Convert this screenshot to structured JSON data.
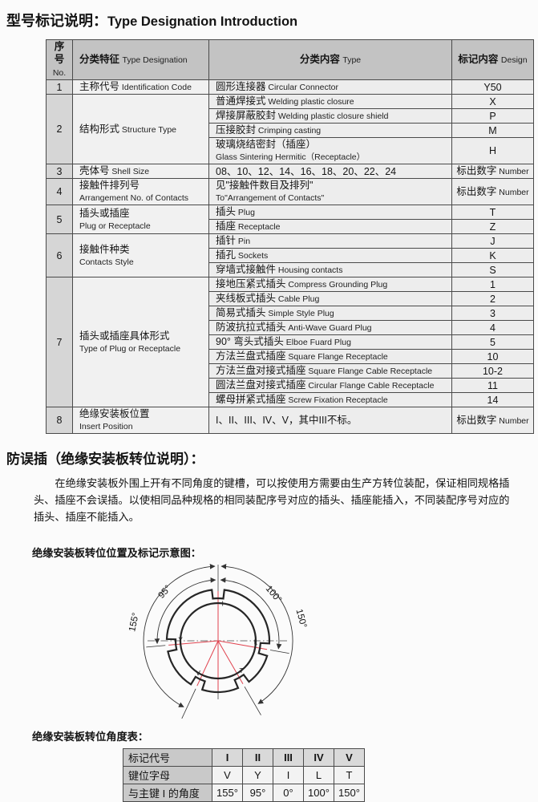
{
  "page": {
    "title_zh": "型号标记说明：",
    "title_en": "Type Designation Introduction"
  },
  "type_table": {
    "headers": [
      {
        "zh": "序号",
        "en": "No."
      },
      {
        "zh": "分类特征",
        "en": "Type Designation"
      },
      {
        "zh": "分类内容",
        "en": "Type"
      },
      {
        "zh": "标记内容",
        "en": "Design"
      }
    ],
    "rows": [
      {
        "no": "1",
        "feature_zh": "主称代号",
        "feature_en": "Identification Code",
        "items": [
          {
            "zh": "圆形连接器",
            "en": "Circular Connector",
            "code": "Y50"
          }
        ]
      },
      {
        "no": "2",
        "feature_zh": "结构形式",
        "feature_en": "Structure Type",
        "items": [
          {
            "zh": "普通焊接式",
            "en": "Welding plastic closure",
            "code": "X"
          },
          {
            "zh": "焊接屏蔽胶封",
            "en": "Welding plastic closure shield",
            "code": "P"
          },
          {
            "zh": "压接胶封",
            "en": "Crimping casting",
            "code": "M"
          },
          {
            "zh": "玻璃烧结密封（插座）",
            "en": "Glass Sintering Hermitic（Receptacle）",
            "code": "H",
            "two_line": true
          }
        ]
      },
      {
        "no": "3",
        "feature_zh": "壳体号",
        "feature_en": "Shell Size",
        "items": [
          {
            "zh": "08、10、12、14、16、18、20、22、24",
            "en": "",
            "code": "标出数字",
            "code_en": "Number"
          }
        ]
      },
      {
        "no": "4",
        "feature_zh": "接触件排列号",
        "feature_en": "Arrangement No. of Contacts",
        "feature_two_line": true,
        "items": [
          {
            "zh": "见\"接触件数目及排列\"",
            "en": "To\"Arrangement of Contacts\"",
            "code": "标出数字",
            "code_en": "Number",
            "two_line": true
          }
        ]
      },
      {
        "no": "5",
        "feature_zh": "插头或插座",
        "feature_en": "Plug or Receptacle",
        "feature_two_line": true,
        "items": [
          {
            "zh": "插头",
            "en": "Plug",
            "code": "T"
          },
          {
            "zh": "插座",
            "en": "Receptacle",
            "code": "Z"
          }
        ]
      },
      {
        "no": "6",
        "feature_zh": "接触件种类",
        "feature_en": "Contacts Style",
        "feature_two_line": true,
        "items": [
          {
            "zh": "插针",
            "en": "Pin",
            "code": "J"
          },
          {
            "zh": "插孔",
            "en": "Sockets",
            "code": "K"
          },
          {
            "zh": "穿墙式接触件",
            "en": "Housing contacts",
            "code": "S"
          }
        ]
      },
      {
        "no": "7",
        "feature_zh": "插头或插座具体形式",
        "feature_en": "Type of Plug or Receptacle",
        "feature_two_line": true,
        "items": [
          {
            "zh": "接地压紧式插头",
            "en": "Compress Grounding Plug",
            "code": "1"
          },
          {
            "zh": "夹线板式插头",
            "en": "Cable Plug",
            "code": "2"
          },
          {
            "zh": "简易式插头",
            "en": "Simple Style Plug",
            "code": "3"
          },
          {
            "zh": "防波抗拉式插头",
            "en": "Anti-Wave Guard Plug",
            "code": "4"
          },
          {
            "zh": "90° 弯头式插头",
            "en": "Elboe Fuard Plug",
            "code": "5"
          },
          {
            "zh": "方法兰盘式插座",
            "en": "Square Flange Receptacle",
            "code": "10"
          },
          {
            "zh": "方法兰盘对接式插座",
            "en": "Square Flange Cable Receptacle",
            "code": "10-2"
          },
          {
            "zh": "圆法兰盘对接式插座",
            "en": "Circular Flange Cable Receptacle",
            "code": "11"
          },
          {
            "zh": "螺母拼紧式插座",
            "en": "Screw Fixation Receptacle",
            "code": "14"
          }
        ]
      },
      {
        "no": "8",
        "feature_zh": "绝缘安装板位置",
        "feature_en": "Insert Position",
        "feature_two_line": true,
        "items": [
          {
            "zh": "I、II、III、IV、V，其中III不标。",
            "en": "",
            "code": "标出数字",
            "code_en": "Number",
            "two_line": true
          }
        ]
      }
    ]
  },
  "section2": {
    "title": "防误插（绝缘安装板转位说明）：",
    "paragraph": "在绝缘安装板外围上开有不同角度的键槽，可以按使用方需要由生产方转位装配，保证相同规格插头、插座不会误插。以使相同品种规格的相同装配序号对应的插头、插座能插入，不同装配序号对应的插头、插座不能插入。"
  },
  "diagram": {
    "caption": "绝缘安装板转位位置及标记示意图：",
    "red_color": "#e0424e",
    "keys": [
      {
        "letter": "I",
        "angle": 0
      },
      {
        "letter": "Y",
        "angle": -95
      },
      {
        "letter": "V",
        "angle": -155
      },
      {
        "letter": "L",
        "angle": 100
      },
      {
        "letter": "T",
        "angle": 150
      }
    ],
    "dims": [
      {
        "label": "95°",
        "to": -95,
        "r": 76
      },
      {
        "label": "155°",
        "to": -155,
        "r": 93
      },
      {
        "label": "100°",
        "to": 100,
        "r": 76
      },
      {
        "label": "150°",
        "to": 150,
        "r": 93
      }
    ]
  },
  "angle_table": {
    "caption": "绝缘安装板转位角度表：",
    "rows": [
      {
        "label": "标记代号",
        "values": [
          "I",
          "II",
          "III",
          "IV",
          "V"
        ],
        "is_header": true
      },
      {
        "label": "键位字母",
        "values": [
          "V",
          "Y",
          "I",
          "L",
          "T"
        ]
      },
      {
        "label": "与主键 I 的角度",
        "values": [
          "155°",
          "95°",
          "0°",
          "100°",
          "150°"
        ]
      }
    ]
  }
}
